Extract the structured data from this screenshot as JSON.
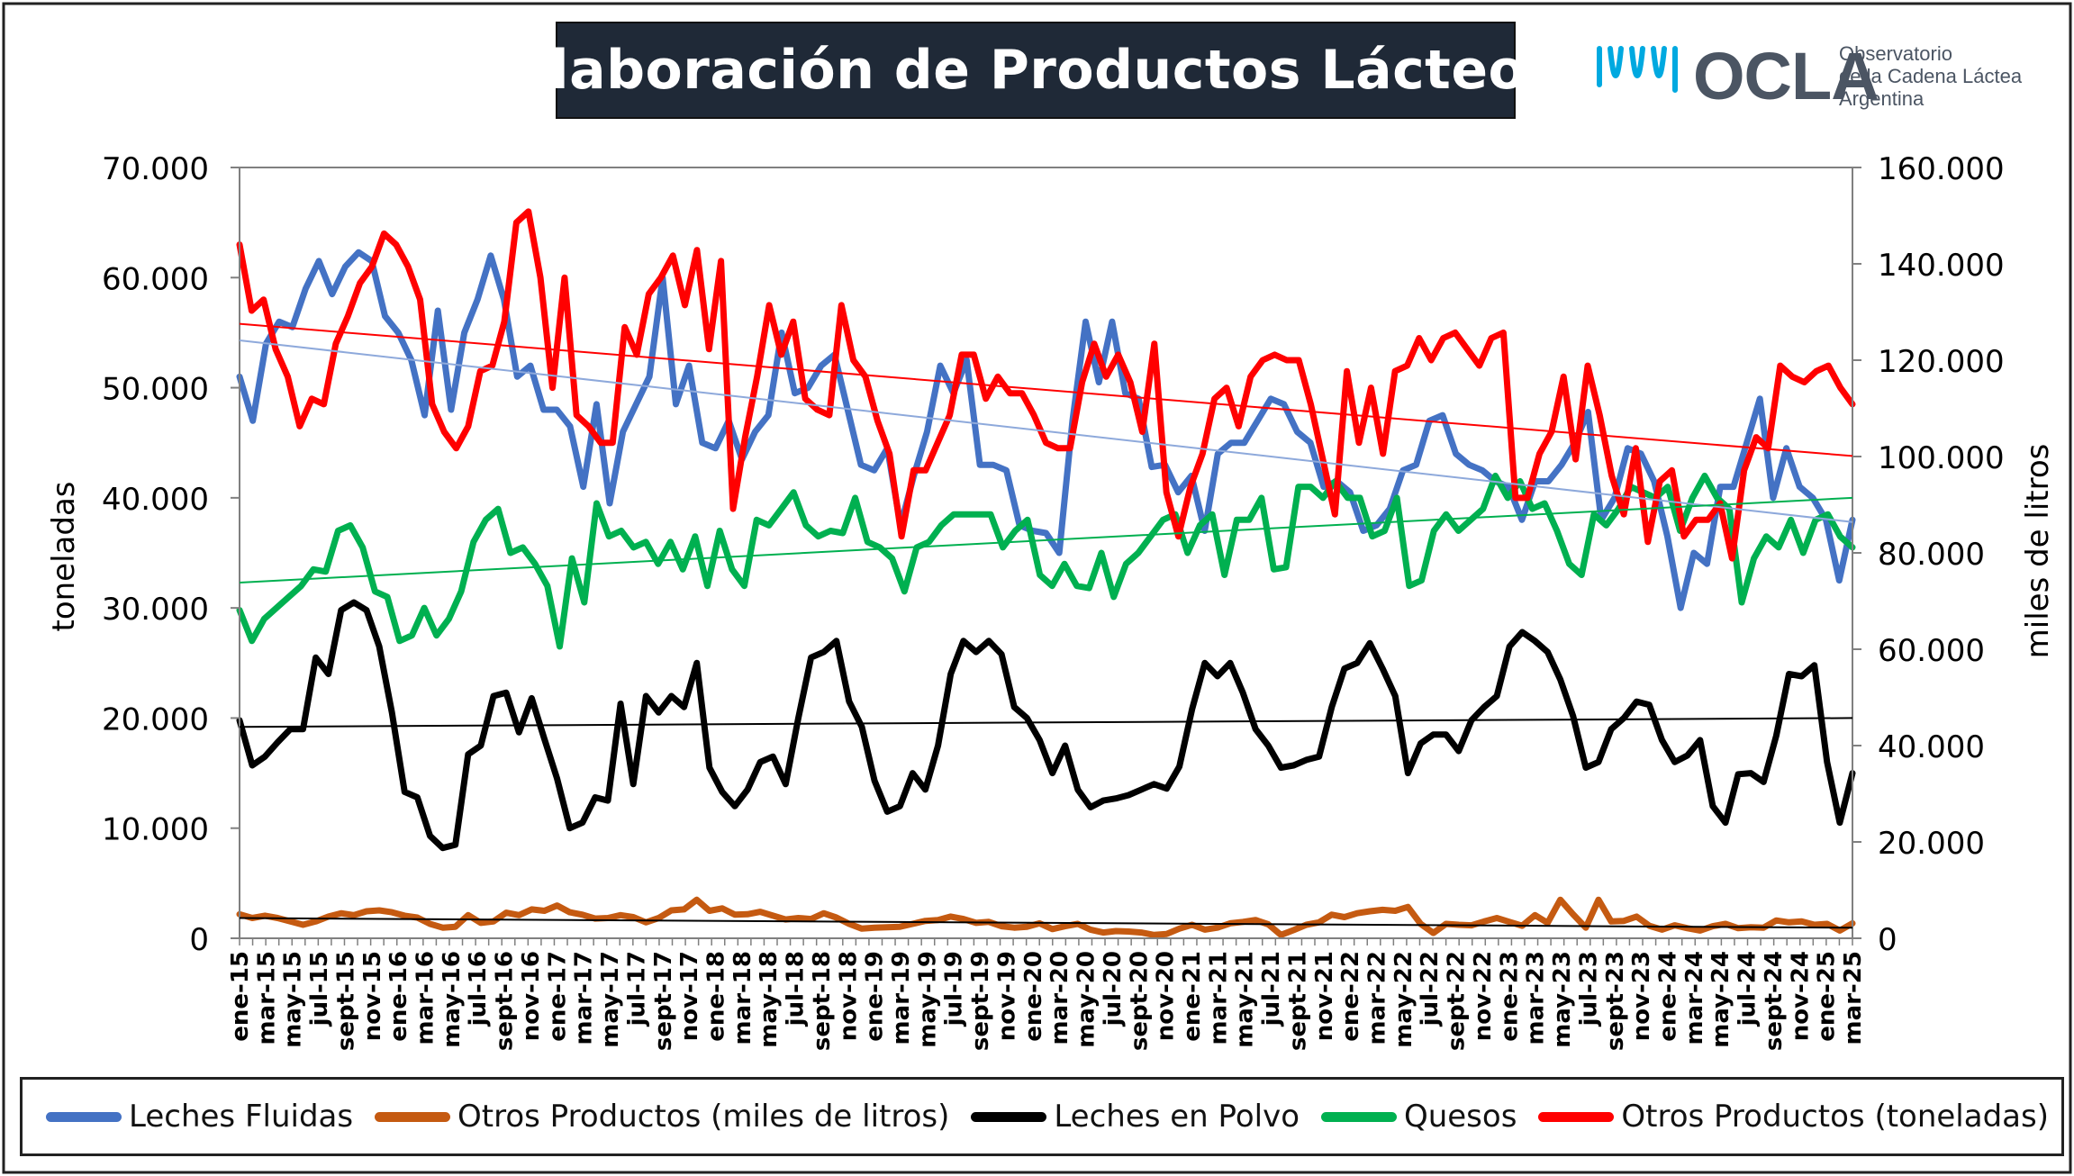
{
  "chart_data": {
    "type": "line",
    "title": "Elaboración de Productos Lácteos",
    "ylabel": "toneladas",
    "y2label": "miles de litros",
    "ylim": [
      0,
      70000
    ],
    "y2lim": [
      0,
      160000
    ],
    "yticks": [
      "0",
      "10.000",
      "20.000",
      "30.000",
      "40.000",
      "50.000",
      "60.000",
      "70.000"
    ],
    "y2ticks": [
      "0",
      "20.000",
      "40.000",
      "60.000",
      "80.000",
      "100.000",
      "120.000",
      "140.000",
      "160.000"
    ],
    "legend_position": "bottom",
    "grid": false,
    "x_labels": [
      "ene-15",
      "mar-15",
      "may-15",
      "jul-15",
      "sept-15",
      "nov-15",
      "ene-16",
      "mar-16",
      "may-16",
      "jul-16",
      "sept-16",
      "nov-16",
      "ene-17",
      "mar-17",
      "may-17",
      "jul-17",
      "sept-17",
      "nov-17",
      "ene-18",
      "mar-18",
      "may-18",
      "jul-18",
      "sept-18",
      "nov-18",
      "ene-19",
      "mar-19",
      "may-19",
      "jul-19",
      "sept-19",
      "nov-19",
      "ene-20",
      "mar-20",
      "may-20",
      "jul-20",
      "sept-20",
      "nov-20",
      "ene-21",
      "mar-21",
      "may-21",
      "jul-21",
      "sept-21",
      "nov-21",
      "ene-22",
      "mar-22",
      "may-22",
      "jul-22",
      "sept-22",
      "nov-22",
      "ene-23",
      "mar-23",
      "may-23",
      "jul-23",
      "sept-23",
      "nov-23",
      "ene-24",
      "mar-24",
      "may-24",
      "jul-24",
      "sept-24",
      "nov-24",
      "ene-25",
      "mar-25"
    ],
    "series": [
      {
        "name": "Leches Fluidas",
        "color": "#4472c4",
        "axis": "left",
        "trendline": true,
        "values": [
          51000,
          47000,
          54000,
          56000,
          55500,
          59000,
          61500,
          58500,
          61000,
          62300,
          61500,
          56500,
          55000,
          52500,
          47500,
          57000,
          48000,
          55000,
          58000,
          62000,
          58000,
          51000,
          52000,
          48000,
          48000,
          46500,
          41000,
          48500,
          39500,
          46000,
          48500,
          51000,
          60000,
          48500,
          52000,
          45000,
          44500,
          47000,
          43500,
          46000,
          47500,
          55000,
          49500,
          50000,
          52000,
          53000,
          48000,
          43000,
          42500,
          44500,
          37500,
          42000,
          46000,
          52000,
          49500,
          52500,
          43000,
          43000,
          42500,
          37500,
          37000,
          36800,
          35000,
          47000,
          56000,
          50500,
          56000,
          49500,
          49000,
          42800,
          43000,
          40500,
          42000,
          37000,
          44000,
          45000,
          45000,
          47000,
          49000,
          48500,
          46000,
          45000,
          41000,
          41500,
          40500,
          37000,
          37500,
          39000,
          42500,
          43000,
          47000,
          47500,
          44000,
          43000,
          42500,
          41500,
          41000,
          38000,
          41500,
          41500,
          43000,
          45000,
          47800,
          38000,
          40000,
          44500,
          44000,
          41500,
          36500,
          30000,
          35000,
          34000,
          41000,
          41000,
          45000,
          49000,
          40000,
          44500,
          41000,
          40000,
          38000,
          32500,
          38000
        ],
        "trend": [
          54300,
          37800
        ]
      },
      {
        "name": "Otros Productos (miles de litros)",
        "color": "#c55a11",
        "axis": "right",
        "trendline": true,
        "values": [
          5000,
          4200,
          4700,
          4200,
          3500,
          2800,
          3500,
          4500,
          5200,
          4800,
          5600,
          5800,
          5400,
          4700,
          4300,
          3000,
          2200,
          2400,
          4800,
          3200,
          3500,
          5300,
          4800,
          6000,
          5700,
          6800,
          5400,
          4900,
          4100,
          4200,
          4800,
          4400,
          3300,
          4200,
          5800,
          6000,
          8000,
          5700,
          6200,
          4900,
          5000,
          5500,
          4700,
          3900,
          4200,
          4000,
          5200,
          4300,
          3000,
          2000,
          2200,
          2300,
          2400,
          3000,
          3600,
          3800,
          4500,
          4000,
          3200,
          3400,
          2500,
          2200,
          2400,
          3100,
          1900,
          2500,
          3000,
          1800,
          1200,
          1500,
          1400,
          1200,
          700,
          900,
          2000,
          2800,
          1800,
          2200,
          3100,
          3400,
          3800,
          2900,
          700,
          1700,
          2800,
          3300,
          4900,
          4400,
          5200,
          5600,
          5900,
          5700,
          6500,
          3000,
          1100,
          3000,
          2800,
          2700,
          3500,
          4200,
          3400,
          2600,
          4800,
          3200,
          8000,
          5000,
          2200,
          8000,
          3500,
          3600,
          4500,
          2600,
          1800,
          2700,
          2100,
          1600,
          2500,
          3000,
          2100,
          2300,
          2200,
          3700,
          3300,
          3500,
          2800,
          3000,
          1600,
          3100
        ],
        "trend": [
          4200,
          2200
        ]
      },
      {
        "name": "Leches en Polvo",
        "color": "#000000",
        "axis": "left",
        "trendline": true,
        "values": [
          19800,
          15700,
          16500,
          17800,
          19000,
          19000,
          25500,
          24000,
          29800,
          30500,
          29800,
          26500,
          20500,
          13300,
          12800,
          9300,
          8200,
          8500,
          16700,
          17500,
          22000,
          22300,
          18700,
          21800,
          18100,
          14500,
          10000,
          10500,
          12800,
          12500,
          21300,
          14000,
          22000,
          20500,
          22000,
          21000,
          25000,
          15500,
          13300,
          12000,
          13500,
          16000,
          16500,
          14000,
          20000,
          25500,
          26000,
          27000,
          21500,
          19200,
          14300,
          11500,
          12000,
          15000,
          13500,
          17500,
          24000,
          27000,
          26000,
          27000,
          25800,
          21000,
          20000,
          18000,
          15000,
          17500,
          13500,
          11900,
          12500,
          12700,
          13000,
          13500,
          14000,
          13600,
          15600,
          20800,
          25000,
          23800,
          25000,
          22300,
          19000,
          17500,
          15500,
          15700,
          16200,
          16500,
          21000,
          24500,
          25000,
          26800,
          24500,
          22000,
          15000,
          17700,
          18500,
          18500,
          17000,
          19800,
          21000,
          22000,
          26500,
          27800,
          27000,
          26000,
          23500,
          20200,
          15500,
          16000,
          19000,
          20000,
          21500,
          21200,
          18000,
          16000,
          16600,
          18000,
          12000,
          10500,
          14900,
          15000,
          14200,
          18400,
          24000,
          23800,
          24800,
          16000,
          10500,
          15000
        ],
        "trend": [
          19200,
          20000
        ]
      },
      {
        "name": "Quesos",
        "color": "#00b050",
        "axis": "left",
        "trendline": true,
        "values": [
          29800,
          27000,
          29000,
          30000,
          31000,
          32000,
          33500,
          33300,
          37000,
          37500,
          35500,
          31500,
          31000,
          27000,
          27500,
          30000,
          27500,
          29000,
          31500,
          36000,
          38000,
          39000,
          35000,
          35500,
          34000,
          32000,
          26500,
          34500,
          30500,
          39500,
          36500,
          37000,
          35500,
          36000,
          34000,
          36000,
          33500,
          36500,
          32000,
          37000,
          33500,
          32000,
          38000,
          37500,
          39000,
          40500,
          37500,
          36500,
          37000,
          36800,
          40000,
          36000,
          35500,
          34500,
          31500,
          35500,
          36000,
          37500,
          38500,
          38500,
          38500,
          38500,
          35500,
          37000,
          38000,
          33000,
          32000,
          34000,
          32000,
          31800,
          35000,
          31000,
          34000,
          35000,
          36500,
          38000,
          38500,
          35000,
          37500,
          38500,
          33000,
          38000,
          38000,
          40000,
          33500,
          33700,
          41000,
          41000,
          40000,
          41500,
          40000,
          40000,
          36500,
          37000,
          40000,
          32000,
          32500,
          37000,
          38500,
          37000,
          38000,
          39000,
          42000,
          40000,
          41500,
          39000,
          39500,
          37000,
          34000,
          33000,
          38500,
          37500,
          39000,
          41000,
          40500,
          40000,
          41000,
          37000,
          40000,
          42000,
          40000,
          39000,
          30500,
          34500,
          36500,
          35500,
          38000,
          35000,
          38000,
          38500,
          36500,
          35500
        ],
        "trend": [
          32300,
          40000
        ]
      },
      {
        "name": "Otros Productos (toneladas)",
        "color": "#ff0000",
        "axis": "left",
        "trendline": true,
        "values": [
          63000,
          57000,
          58000,
          53500,
          51000,
          46500,
          49000,
          48500,
          54000,
          56500,
          59500,
          61000,
          64000,
          63000,
          61000,
          58000,
          48500,
          46000,
          44500,
          46500,
          51500,
          52000,
          56000,
          65000,
          66000,
          60000,
          50000,
          60000,
          47500,
          46500,
          45000,
          45000,
          55500,
          53000,
          58500,
          60000,
          62000,
          57500,
          62500,
          53500,
          61500,
          39000,
          45500,
          51000,
          57500,
          53000,
          56000,
          49000,
          48000,
          47500,
          57500,
          52500,
          51000,
          47000,
          44000,
          36500,
          42500,
          42500,
          45000,
          47500,
          53000,
          53000,
          49000,
          51000,
          49500,
          49500,
          47500,
          45000,
          44500,
          44500,
          50500,
          54000,
          51000,
          53000,
          50500,
          46000,
          54000,
          40500,
          36500,
          41000,
          44000,
          49000,
          50000,
          46500,
          51000,
          52500,
          53000,
          52500,
          52500,
          48500,
          43500,
          38500,
          51500,
          45000,
          50000,
          44000,
          51500,
          52000,
          54500,
          52500,
          54500,
          55000,
          53500,
          52000,
          54500,
          55000,
          40000,
          40000,
          44000,
          46000,
          51000,
          43500,
          52000,
          47500,
          42000,
          38500,
          44500,
          36000,
          41500,
          42500,
          36500,
          38000,
          38000,
          39500,
          34500,
          42500,
          45500,
          44500,
          52000,
          51000,
          50500,
          51500,
          52000,
          50000,
          48500
        ],
        "trend": [
          55800,
          43800
        ]
      }
    ]
  },
  "header": {
    "title": "Elaboración de Productos Lácteos"
  },
  "logo": {
    "name": "OCLA",
    "line1": "Observatorio",
    "line2": "de la Cadena Láctea",
    "line3": "Argentina",
    "accent_color": "#00a9e0"
  }
}
